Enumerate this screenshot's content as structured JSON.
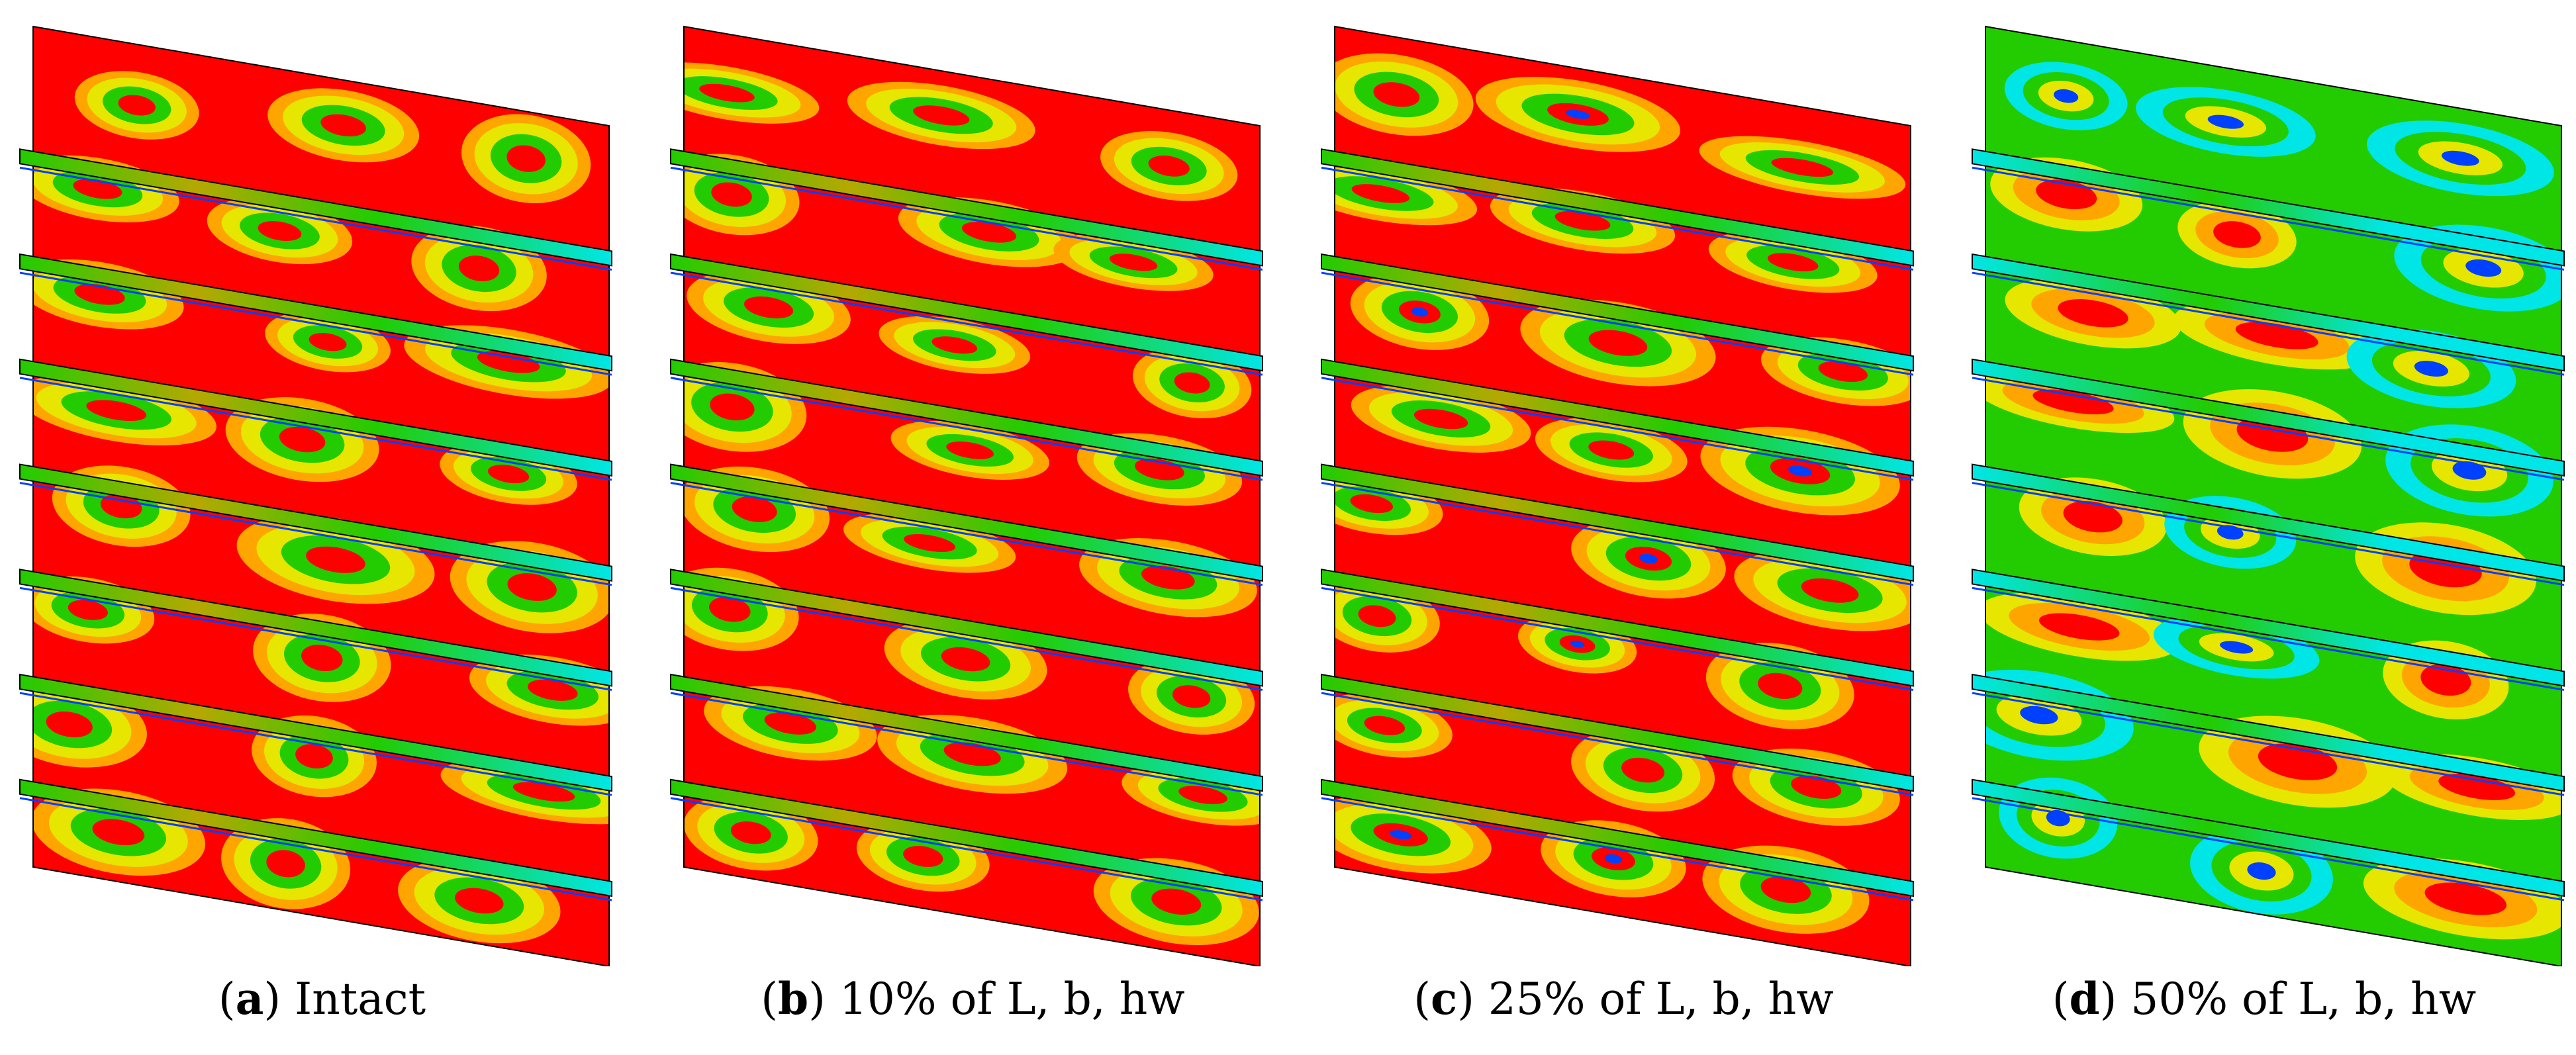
{
  "colors": {
    "red": "#ff0000",
    "orange": "#ffa500",
    "yellow": "#e6e600",
    "green": "#22cc00",
    "cyan": "#00e6e6",
    "blue": "#0040ff",
    "outline": "#000000"
  },
  "panels": [
    {
      "letter": "a",
      "label": "Intact",
      "paren_open": "(",
      "paren_close": ") ",
      "damage": 0
    },
    {
      "letter": "b",
      "label": "10% of L, b, hw",
      "paren_open": "(",
      "paren_close": ") ",
      "damage": 10
    },
    {
      "letter": "c",
      "label": "25% of L, b, hw",
      "paren_open": "(",
      "paren_close": ") ",
      "damage": 25
    },
    {
      "letter": "d",
      "label": "50% of L, b, hw",
      "paren_open": "(",
      "paren_close": ") ",
      "damage": 50
    }
  ],
  "stiffener_count": 7
}
